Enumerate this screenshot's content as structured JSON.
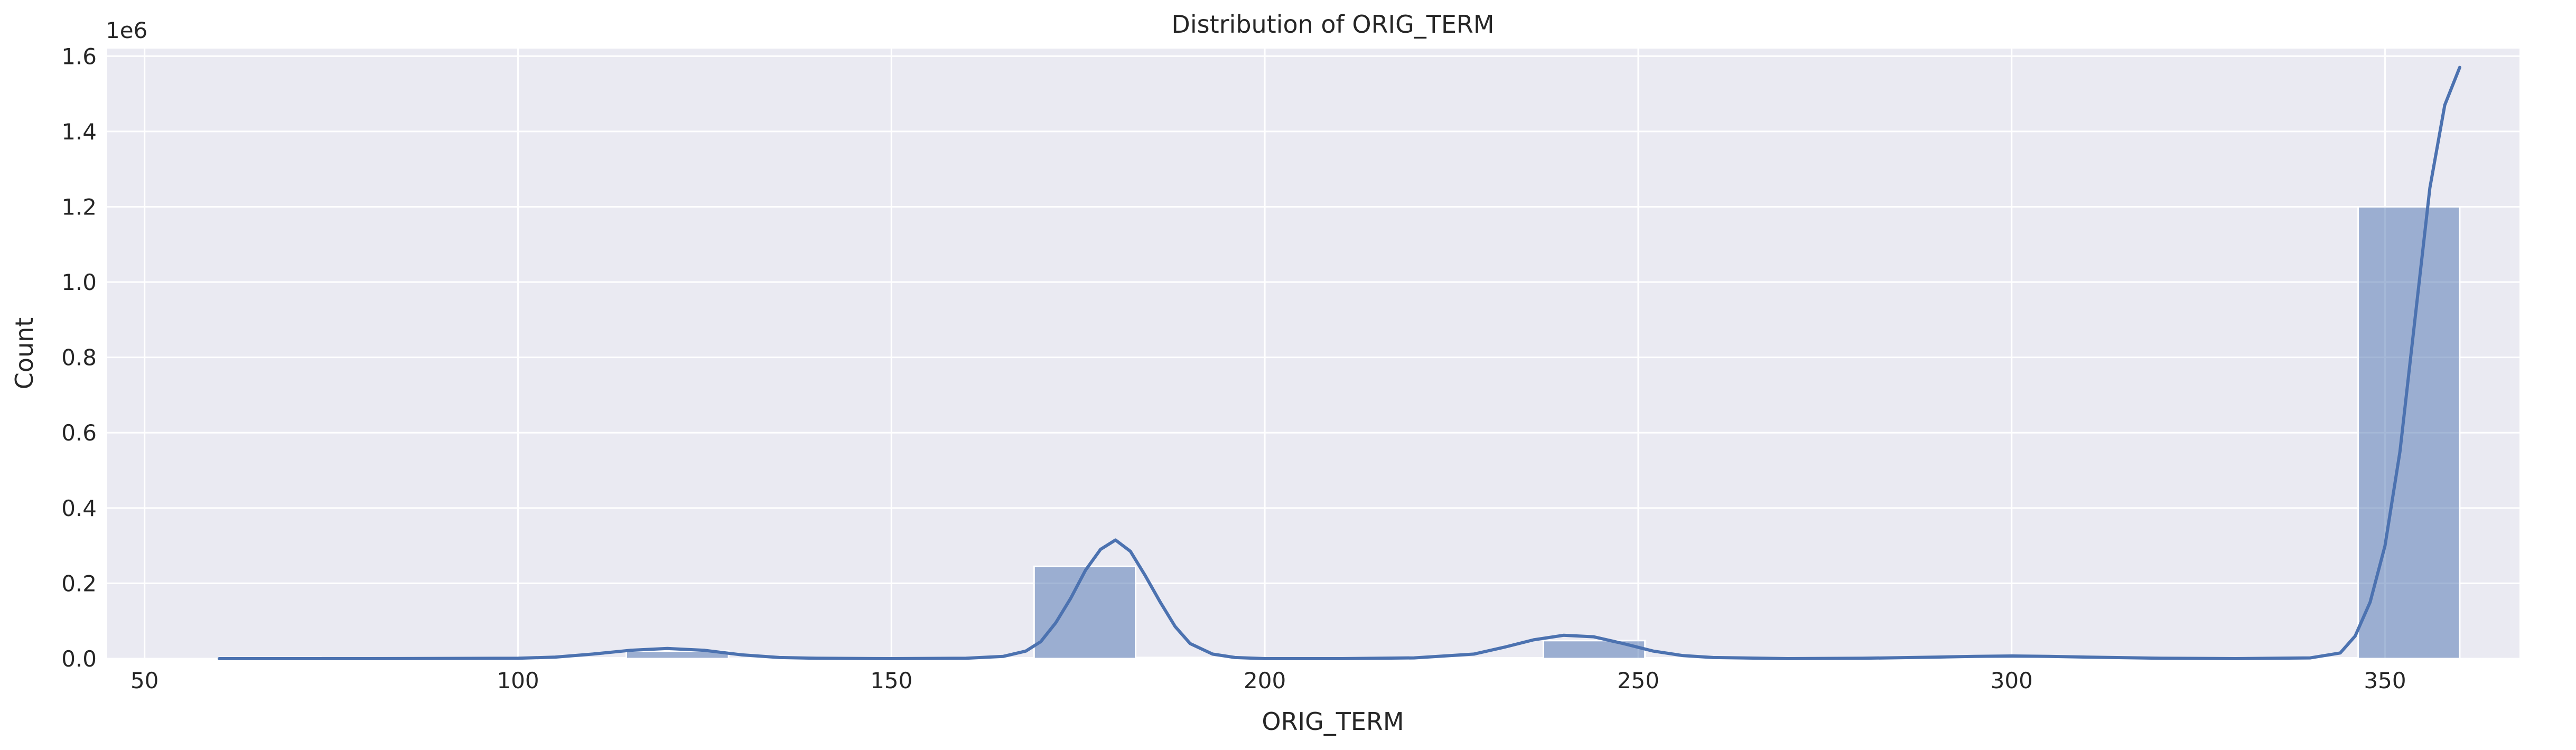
{
  "chart_data": {
    "type": "bar",
    "title": "Distribution of ORIG_TERM",
    "xlabel": "ORIG_TERM",
    "ylabel": "Count",
    "y_offset_label": "1e6",
    "y_scale_factor": 1000000,
    "xlim": [
      45,
      368
    ],
    "ylim": [
      0,
      1.62
    ],
    "grid": true,
    "x_ticks": [
      50,
      100,
      150,
      200,
      250,
      300,
      350
    ],
    "x_tick_labels": [
      "50",
      "100",
      "150",
      "200",
      "250",
      "300",
      "350"
    ],
    "y_ticks": [
      0.0,
      0.2,
      0.4,
      0.6,
      0.8,
      1.0,
      1.2,
      1.4,
      1.6
    ],
    "y_tick_labels": [
      "0.0",
      "0.2",
      "0.4",
      "0.6",
      "0.8",
      "1.0",
      "1.2",
      "1.4",
      "1.6"
    ],
    "bins": [
      {
        "x0": 60,
        "x1": 73.6,
        "count": 0.003
      },
      {
        "x0": 73.6,
        "x1": 87.3,
        "count": 0.001
      },
      {
        "x0": 87.3,
        "x1": 100.9,
        "count": 0.001
      },
      {
        "x0": 100.9,
        "x1": 114.5,
        "count": 0.002
      },
      {
        "x0": 114.5,
        "x1": 128.2,
        "count": 0.02
      },
      {
        "x0": 128.2,
        "x1": 141.8,
        "count": 0.001
      },
      {
        "x0": 141.8,
        "x1": 155.5,
        "count": 0.001
      },
      {
        "x0": 155.5,
        "x1": 169.1,
        "count": 0.002
      },
      {
        "x0": 169.1,
        "x1": 182.7,
        "count": 0.245
      },
      {
        "x0": 182.7,
        "x1": 196.4,
        "count": 0.003
      },
      {
        "x0": 196.4,
        "x1": 210.0,
        "count": 0.001
      },
      {
        "x0": 210.0,
        "x1": 223.6,
        "count": 0.001
      },
      {
        "x0": 223.6,
        "x1": 237.3,
        "count": 0.002
      },
      {
        "x0": 237.3,
        "x1": 250.9,
        "count": 0.048
      },
      {
        "x0": 250.9,
        "x1": 264.5,
        "count": 0.002
      },
      {
        "x0": 264.5,
        "x1": 278.2,
        "count": 0.001
      },
      {
        "x0": 278.2,
        "x1": 291.8,
        "count": 0.002
      },
      {
        "x0": 291.8,
        "x1": 305.5,
        "count": 0.006
      },
      {
        "x0": 305.5,
        "x1": 319.1,
        "count": 0.001
      },
      {
        "x0": 319.1,
        "x1": 332.7,
        "count": 0.001
      },
      {
        "x0": 332.7,
        "x1": 346.4,
        "count": 0.002
      },
      {
        "x0": 346.4,
        "x1": 360.0,
        "count": 1.2
      }
    ],
    "kde_line": {
      "x": [
        60,
        80,
        100,
        105,
        110,
        115,
        120,
        125,
        130,
        135,
        140,
        150,
        160,
        165,
        168,
        170,
        172,
        174,
        176,
        178,
        180,
        182,
        184,
        186,
        188,
        190,
        193,
        196,
        200,
        210,
        220,
        228,
        232,
        236,
        240,
        244,
        248,
        252,
        256,
        260,
        270,
        280,
        290,
        295,
        300,
        305,
        310,
        320,
        330,
        340,
        344,
        346,
        348,
        350,
        352,
        354,
        356,
        358,
        360
      ],
      "y": [
        0.0,
        0.0,
        0.001,
        0.004,
        0.012,
        0.022,
        0.027,
        0.022,
        0.01,
        0.003,
        0.001,
        0.0,
        0.001,
        0.006,
        0.02,
        0.045,
        0.095,
        0.16,
        0.235,
        0.29,
        0.315,
        0.285,
        0.22,
        0.15,
        0.085,
        0.04,
        0.012,
        0.003,
        0.0,
        0.0,
        0.002,
        0.012,
        0.03,
        0.05,
        0.062,
        0.058,
        0.04,
        0.02,
        0.008,
        0.003,
        0.0,
        0.001,
        0.004,
        0.006,
        0.007,
        0.006,
        0.004,
        0.001,
        0.0,
        0.002,
        0.015,
        0.06,
        0.15,
        0.3,
        0.55,
        0.9,
        1.25,
        1.47,
        1.57
      ]
    },
    "colors": {
      "bar_fill": "#4c72b0",
      "kde_line": "#4c72b0",
      "plot_background": "#eaeaf2",
      "grid": "#ffffff"
    }
  }
}
